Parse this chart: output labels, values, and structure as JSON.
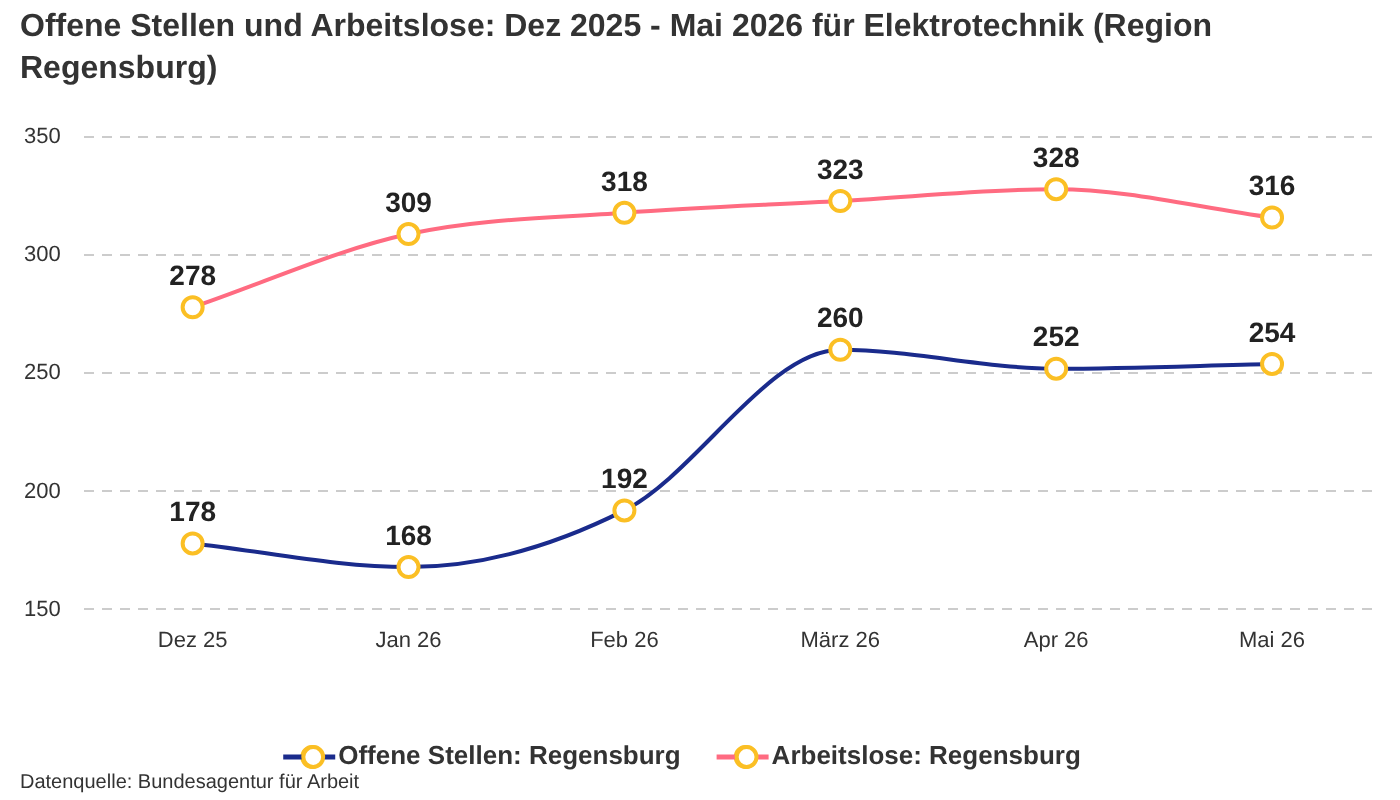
{
  "chart_data": {
    "type": "line",
    "title": "Offene Stellen und Arbeitslose: Dez 2025 - Mai 2026 für Elektrotechnik (Region Regensburg)",
    "categories": [
      "Dez 25",
      "Jan 26",
      "Feb 26",
      "März 26",
      "Apr 26",
      "Mai 26"
    ],
    "series": [
      {
        "name": "Offene Stellen: Regensburg",
        "color": "#1a2b8c",
        "values": [
          178,
          168,
          192,
          260,
          252,
          254
        ]
      },
      {
        "name": "Arbeitslose: Regensburg",
        "color": "#ff6b81",
        "values": [
          278,
          309,
          318,
          323,
          328,
          316
        ]
      }
    ],
    "ylim": [
      150,
      350
    ],
    "yticks": [
      150,
      200,
      250,
      300,
      350
    ],
    "grid": "y",
    "legend": "bottom",
    "marker": "circle",
    "line_style": "solid",
    "data_labels": true,
    "annotations": [
      "Datenquelle: Bundesagentur für Arbeit"
    ]
  }
}
